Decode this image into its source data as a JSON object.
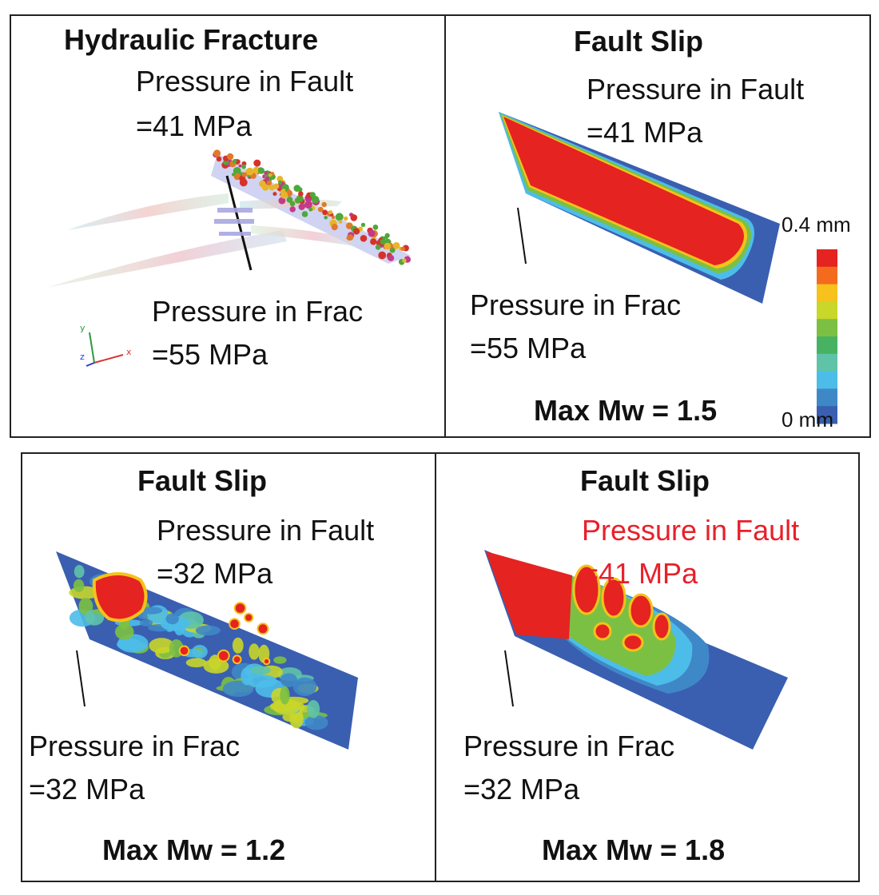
{
  "colors": {
    "slip_max": "#e52320",
    "slip_min": "#3a5fb0",
    "accent_text": "#e8202a"
  },
  "colorbar": {
    "max_label": "0.4 mm",
    "min_label": "0 mm",
    "stops": [
      "#e52320",
      "#f46b1e",
      "#f6c21b",
      "#c9d62a",
      "#7cc043",
      "#47b262",
      "#5fc3a8",
      "#4cbde9",
      "#3f88c8",
      "#3a5fb0"
    ]
  },
  "panels": {
    "hf": {
      "title": "Hydraulic Fracture",
      "fault_pressure_label": "Pressure in Fault",
      "fault_pressure_value": "=41 MPa",
      "frac_pressure_label": "Pressure in Frac",
      "frac_pressure_value": "=55 MPa",
      "axes": {
        "x": "x",
        "y": "y",
        "z": "z"
      }
    },
    "slip_a": {
      "title": "Fault Slip",
      "fault_pressure_label": "Pressure in Fault",
      "fault_pressure_value": "=41 MPa",
      "frac_pressure_label": "Pressure in Frac",
      "frac_pressure_value": "=55 MPa",
      "max_mw": "Max Mw = 1.5"
    },
    "slip_b": {
      "title": "Fault Slip",
      "fault_pressure_label": "Pressure in Fault",
      "fault_pressure_value": "=32 MPa",
      "frac_pressure_label": "Pressure in Frac",
      "frac_pressure_value": "=32 MPa",
      "max_mw": "Max Mw = 1.2"
    },
    "slip_c": {
      "title": "Fault Slip",
      "fault_pressure_label": "Pressure in Fault",
      "fault_pressure_value": "=41 MPa",
      "frac_pressure_label": "Pressure in Frac",
      "frac_pressure_value": "=32 MPa",
      "max_mw": "Max Mw = 1.8"
    }
  }
}
